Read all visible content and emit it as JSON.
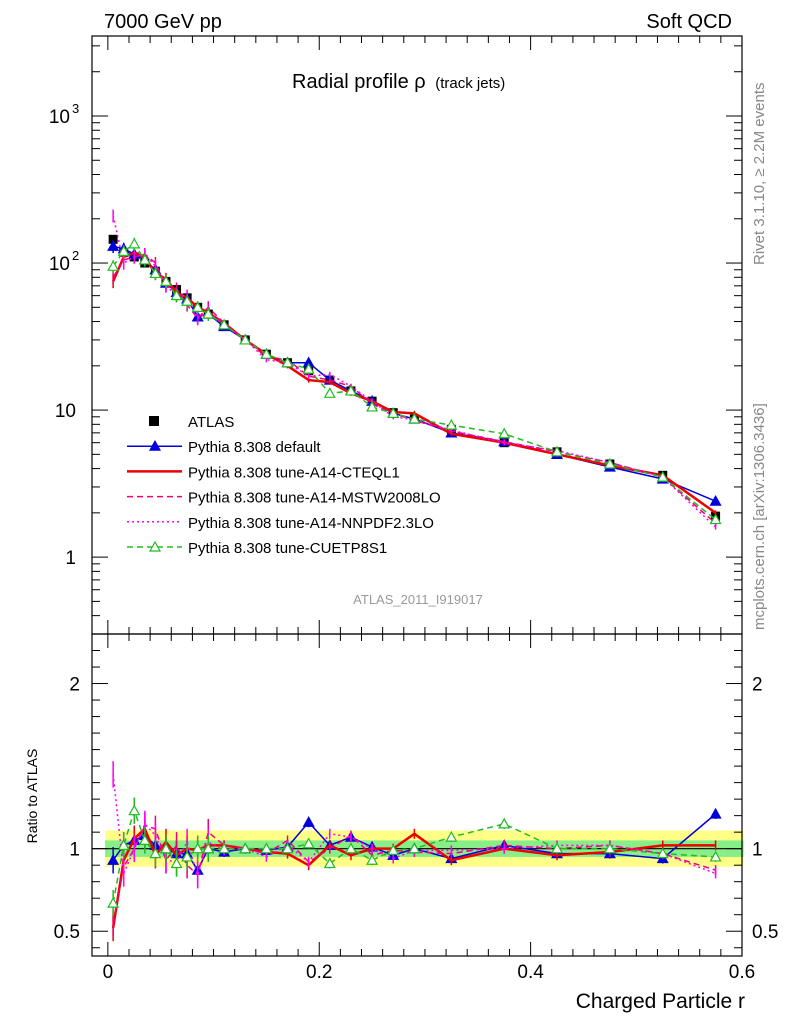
{
  "header": {
    "left": "7000 GeV pp",
    "right": "Soft QCD"
  },
  "side_labels": {
    "rivet": "Rivet 3.1.10, ≥ 2.2M events",
    "mcplots": "mcplots.cern.ch [arXiv:1306.3436]"
  },
  "chart_data": [
    {
      "type": "line",
      "title": "Radial profile ρ",
      "title_suffix": "(track jets)",
      "watermark": "ATLAS_2011_I919017",
      "xlabel": "Charged Particle r",
      "ylabel": "",
      "yscale": "log",
      "xlim": [
        -0.015,
        0.6
      ],
      "ylim": [
        0.3,
        3500
      ],
      "y_ticks": [
        {
          "value": 1,
          "base": "1",
          "exp": ""
        },
        {
          "value": 10,
          "base": "10",
          "exp": ""
        },
        {
          "value": 100,
          "base": "10",
          "exp": "2"
        },
        {
          "value": 1000,
          "base": "10",
          "exp": "3"
        }
      ],
      "legend_position": "bottom-left",
      "x": [
        0.005,
        0.015,
        0.025,
        0.035,
        0.045,
        0.055,
        0.065,
        0.075,
        0.085,
        0.095,
        0.11,
        0.13,
        0.15,
        0.17,
        0.19,
        0.21,
        0.23,
        0.25,
        0.27,
        0.29,
        0.325,
        0.375,
        0.425,
        0.475,
        0.525,
        0.575
      ],
      "series": [
        {
          "name": "ATLAS",
          "color": "#000000",
          "style": "data",
          "values": [
            145,
            118,
            110,
            100,
            88,
            75,
            66,
            58,
            50,
            45,
            38,
            30,
            24,
            21,
            18.5,
            16,
            13.5,
            11.5,
            9.6,
            8.7,
            7.4,
            6.0,
            5.2,
            4.3,
            3.6,
            1.9
          ]
        },
        {
          "name": "Pythia 8.308 default",
          "color": "#0000dd",
          "style": "solid-tri",
          "values": [
            130,
            125,
            115,
            105,
            90,
            73,
            63,
            57,
            43,
            45,
            37,
            30,
            24,
            21,
            21,
            16,
            13.5,
            11.5,
            9.5,
            8.7,
            7.0,
            6.1,
            5.0,
            4.1,
            3.4,
            2.4
          ]
        },
        {
          "name": "Pythia 8.308 tune-A14-CTEQL1",
          "color": "#ee0000",
          "style": "solid",
          "values": [
            75,
            110,
            117,
            110,
            85,
            78,
            63,
            58,
            50,
            46,
            39,
            30,
            24,
            20,
            16,
            15.5,
            13,
            11.5,
            9.7,
            9.5,
            6.9,
            6.0,
            5.0,
            4.2,
            3.6,
            2.0
          ]
        },
        {
          "name": "Pythia 8.308 tune-A14-MSTW2008LO",
          "color": "#ee0077",
          "style": "dashed",
          "values": [
            80,
            105,
            110,
            115,
            100,
            70,
            67,
            52,
            42,
            50,
            39,
            30,
            23,
            22,
            17,
            16,
            14.5,
            11,
            9.5,
            8.5,
            7.2,
            6.1,
            5.2,
            4.4,
            3.5,
            1.7
          ]
        },
        {
          "name": "Pythia 8.308 tune-A14-NNPDF2.3LO",
          "color": "#ff00ff",
          "style": "dotted",
          "values": [
            210,
            100,
            110,
            115,
            95,
            70,
            60,
            60,
            42,
            47,
            38,
            30,
            22,
            21,
            17,
            17.5,
            14.5,
            11.5,
            9,
            8.6,
            7.3,
            6.0,
            5.3,
            4.4,
            3.5,
            1.6
          ]
        },
        {
          "name": "Pythia 8.308 tune-CUETP8S1",
          "color": "#22bb22",
          "style": "dashed-tri",
          "values": [
            95,
            120,
            135,
            105,
            85,
            75,
            60,
            55,
            50,
            45,
            38,
            30,
            24,
            21,
            19,
            13,
            13.5,
            10.5,
            9.5,
            8.7,
            7.9,
            6.9,
            5.2,
            4.3,
            3.5,
            1.8
          ]
        }
      ]
    },
    {
      "type": "line",
      "xlabel": "Charged Particle r",
      "ylabel": "Ratio to ATLAS",
      "ylim": [
        0.35,
        2.3
      ],
      "y_ticks": [
        0.5,
        1,
        2
      ],
      "x_ticks": [
        0,
        0.2,
        0.4,
        0.6
      ],
      "x_tick_labels": [
        "0",
        "0.2",
        "0.4",
        "0.6"
      ],
      "band_inner": [
        0.95,
        1.05
      ],
      "band_outer": [
        0.89,
        1.11
      ],
      "x": [
        0.005,
        0.015,
        0.025,
        0.035,
        0.045,
        0.055,
        0.065,
        0.075,
        0.085,
        0.095,
        0.11,
        0.13,
        0.15,
        0.17,
        0.19,
        0.21,
        0.23,
        0.25,
        0.27,
        0.29,
        0.325,
        0.375,
        0.425,
        0.475,
        0.525,
        0.575
      ],
      "series": [
        {
          "name": "Pythia 8.308 default",
          "color": "#0000dd",
          "style": "solid-tri",
          "values": [
            0.93,
            1.02,
            1.05,
            1.08,
            1.02,
            1.0,
            0.97,
            0.97,
            0.87,
            1.0,
            0.98,
            1.0,
            0.99,
            1.01,
            1.16,
            1.02,
            1.07,
            1.01,
            0.96,
            1.0,
            0.94,
            1.02,
            0.97,
            0.97,
            0.94,
            1.21
          ]
        },
        {
          "name": "Pythia 8.308 tune-A14-CTEQL1",
          "color": "#ee0000",
          "style": "solid",
          "values": [
            0.52,
            0.93,
            1.06,
            1.12,
            0.96,
            1.04,
            0.96,
            1.0,
            0.99,
            1.02,
            1.02,
            1.0,
            0.98,
            0.97,
            0.9,
            1.02,
            0.96,
            1.0,
            1.0,
            1.09,
            0.93,
            1.0,
            0.96,
            0.98,
            1.02,
            1.02
          ]
        },
        {
          "name": "Pythia 8.308 tune-A14-MSTW2008LO",
          "color": "#ee0077",
          "style": "dashed",
          "values": [
            0.55,
            0.89,
            1.0,
            1.14,
            1.12,
            0.93,
            1.02,
            0.9,
            0.84,
            1.1,
            1.02,
            1.0,
            0.97,
            1.05,
            0.92,
            1.0,
            1.08,
            0.96,
            0.99,
            0.98,
            0.97,
            1.02,
            1.0,
            1.02,
            0.97,
            0.87
          ]
        },
        {
          "name": "Pythia 8.308 tune-A14-NNPDF2.3LO",
          "color": "#ff00ff",
          "style": "dotted",
          "values": [
            1.45,
            0.85,
            1.0,
            1.15,
            1.08,
            0.93,
            0.92,
            1.04,
            0.84,
            1.04,
            0.99,
            1.0,
            0.95,
            1.02,
            0.92,
            1.09,
            1.07,
            1.0,
            0.94,
            0.99,
            0.99,
            1.0,
            1.02,
            1.02,
            0.97,
            0.85
          ]
        },
        {
          "name": "Pythia 8.308 tune-CUETP8S1",
          "color": "#22bb22",
          "style": "dashed-tri",
          "values": [
            0.67,
            1.02,
            1.23,
            1.05,
            0.97,
            1.0,
            0.91,
            0.95,
            1.0,
            1.0,
            1.0,
            1.0,
            1.0,
            1.0,
            1.03,
            0.91,
            1.0,
            0.93,
            0.99,
            1.0,
            1.07,
            1.15,
            1.0,
            1.0,
            0.97,
            0.95
          ]
        }
      ]
    }
  ]
}
